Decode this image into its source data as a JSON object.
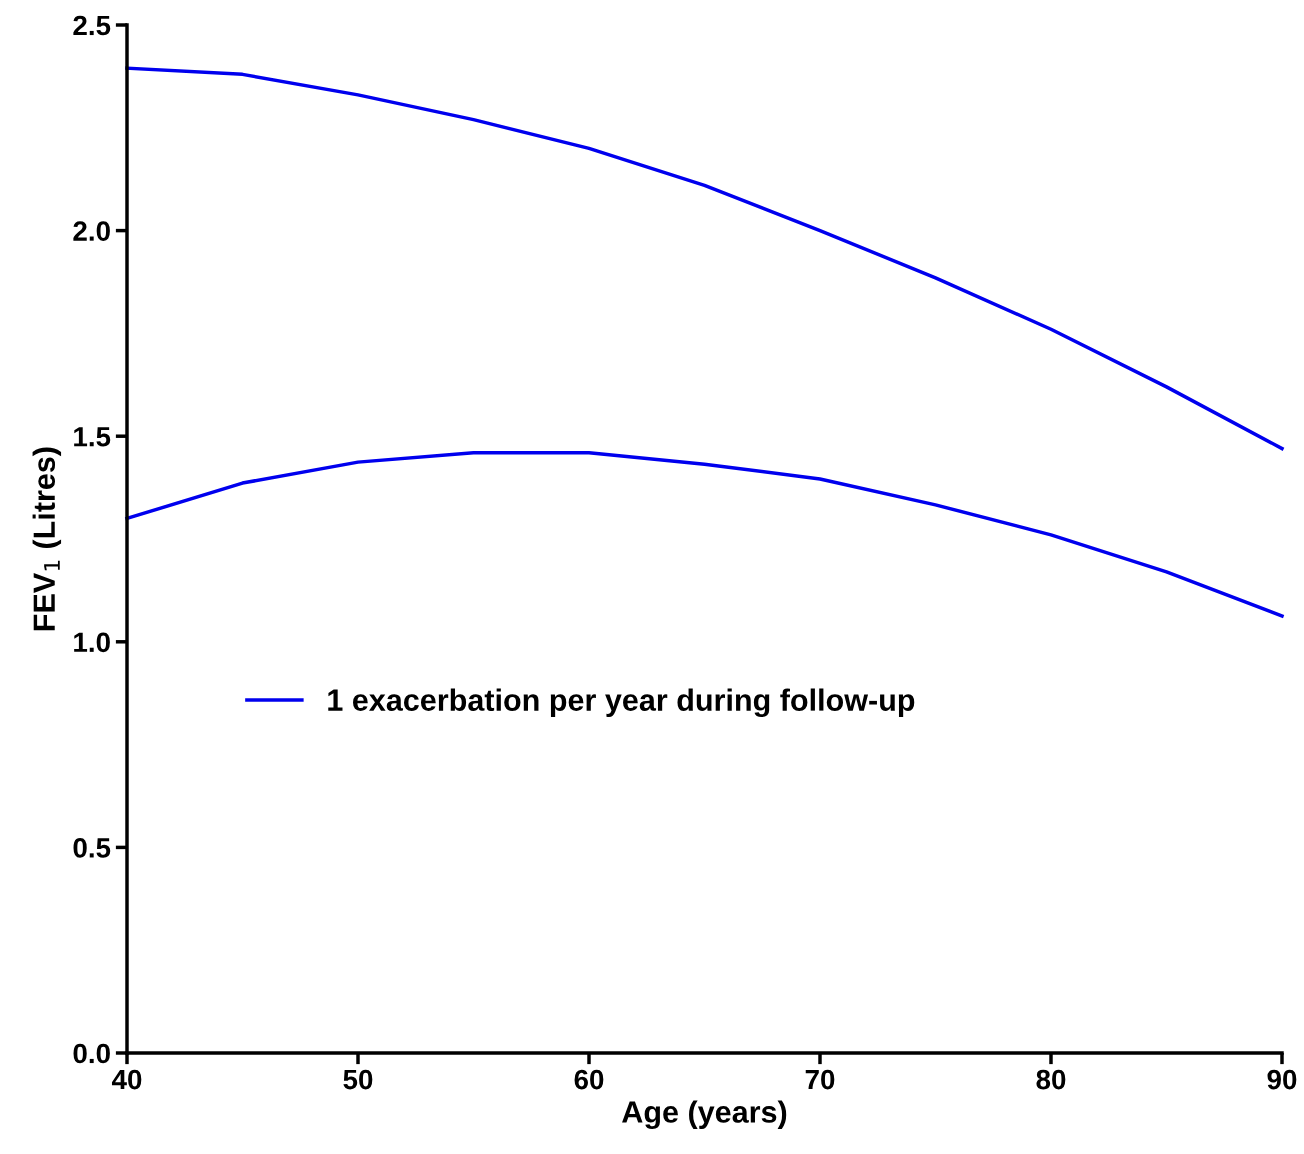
{
  "chart_data": {
    "type": "line",
    "xlabel": "Age (years)",
    "ylabel": "FEV$_{1}$ (Litres)",
    "x": [
      40,
      45,
      50,
      55,
      60,
      65,
      70,
      75,
      80,
      85,
      90
    ],
    "series": [
      {
        "name": "1 exacerbation per year during follow-up",
        "color": "#0000ee",
        "values": [
          2.395,
          2.38,
          2.33,
          2.27,
          2.2,
          2.11,
          2.0,
          1.885,
          1.76,
          1.62,
          1.47
        ]
      },
      {
        "color": "#0000ee",
        "values": [
          1.3,
          1.386,
          1.437,
          1.46,
          1.46,
          1.432,
          1.396,
          1.333,
          1.26,
          1.17,
          1.063
        ]
      }
    ],
    "xlim": [
      40,
      90
    ],
    "xticks": [
      40,
      50,
      60,
      70,
      80,
      90
    ],
    "ylim": [
      0,
      2.5
    ],
    "yticks": [
      {
        "value": 0,
        "label": "0.0"
      },
      0.5,
      {
        "value": 1,
        "label": "1.0"
      },
      1.5,
      {
        "value": 2,
        "label": "2.0"
      },
      2.5
    ],
    "grid": false,
    "legend": "lower left",
    "marker": "none",
    "line_style": "solid"
  }
}
